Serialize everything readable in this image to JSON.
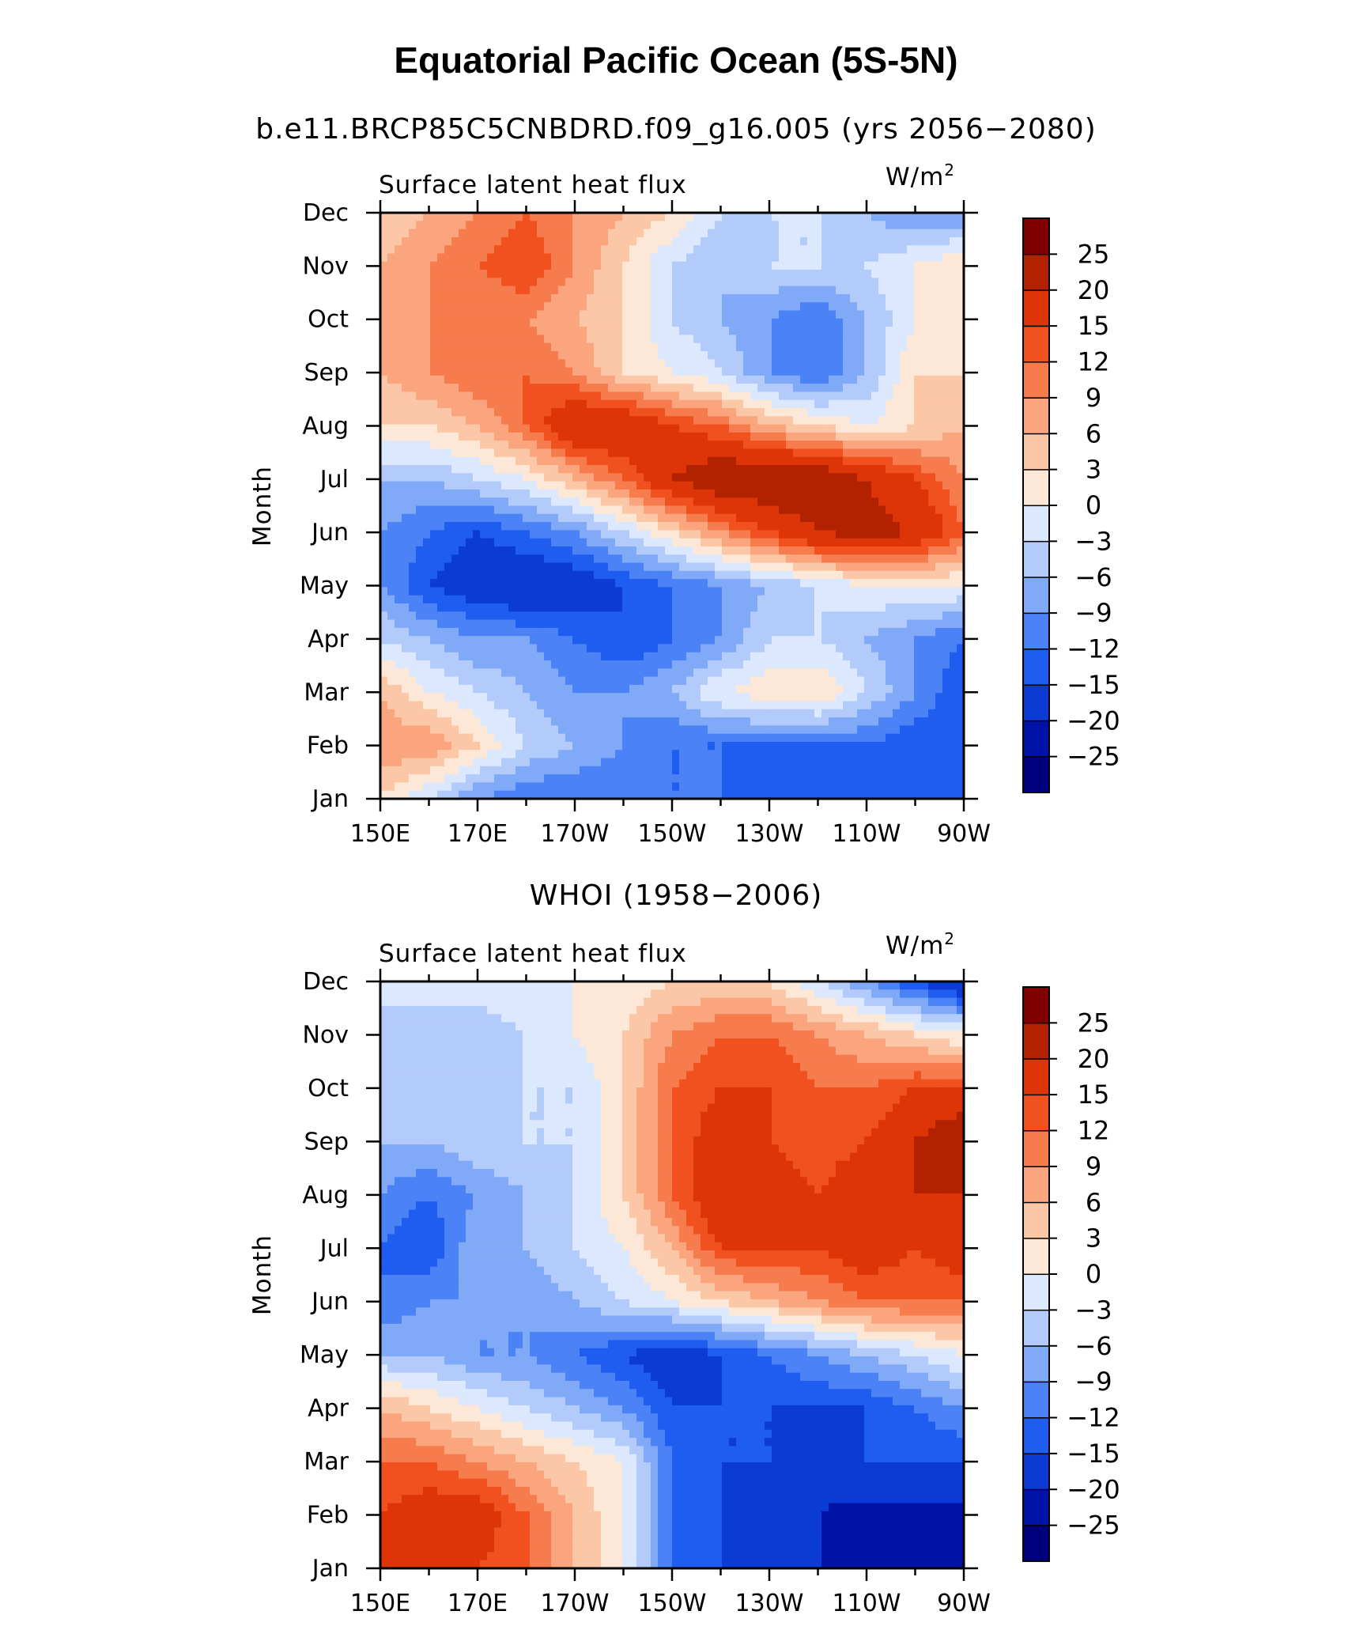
{
  "figure": {
    "title": "Equatorial Pacific Ocean (5S-5N)",
    "colorbar_colors": [
      "#00007f",
      "#0013a6",
      "#0b3ad5",
      "#1f5cf0",
      "#4b82f5",
      "#80a9f7",
      "#b3cbfa",
      "#dbe8fd",
      "#fde8d7",
      "#fcc7a6",
      "#fba57e",
      "#f77c4d",
      "#f1511f",
      "#dd3508",
      "#b22200",
      "#800000"
    ]
  },
  "chart_data": [
    {
      "type": "heatmap",
      "subtitle": "b.e11.BRCP85C5CNBDRD.f09_g16.005 (yrs 2056−2080)",
      "left_label": "Surface latent heat flux",
      "units_label": "W/m",
      "units_sup": "2",
      "ylabel": "Month",
      "x_ticks": [
        "150E",
        "170E",
        "170W",
        "150W",
        "130W",
        "110W",
        "90W"
      ],
      "x_values": [
        150,
        170,
        190,
        210,
        230,
        250,
        270
      ],
      "xlim": [
        150,
        270
      ],
      "y_ticks": [
        "Jan",
        "Feb",
        "Mar",
        "Apr",
        "May",
        "Jun",
        "Jul",
        "Aug",
        "Sep",
        "Oct",
        "Nov",
        "Dec"
      ],
      "y_values": [
        1,
        2,
        3,
        4,
        5,
        6,
        7,
        8,
        9,
        10,
        11,
        12
      ],
      "ylim": [
        1,
        12
      ],
      "colorbar_labels": [
        "25",
        "20",
        "15",
        "12",
        "9",
        "6",
        "3",
        "0",
        "−3",
        "−6",
        "−9",
        "−12",
        "−15",
        "−20",
        "−25"
      ],
      "levels": [
        -25,
        -20,
        -15,
        -12,
        -9,
        -6,
        -3,
        0,
        3,
        6,
        9,
        12,
        15,
        20,
        25
      ],
      "grid_x": [
        150,
        160,
        170,
        180,
        190,
        200,
        210,
        220,
        230,
        240,
        250,
        260,
        270
      ],
      "grid_y": [
        1,
        2,
        3,
        4,
        5,
        6,
        7,
        8,
        9,
        10,
        11,
        12
      ],
      "values": [
        [
          3,
          -3,
          -9,
          -12,
          -12,
          -12,
          -12,
          -12,
          -15,
          -15,
          -15,
          -15,
          -15
        ],
        [
          8,
          9,
          3,
          -3,
          -6,
          -9,
          -12,
          -12,
          -12,
          -12,
          -12,
          -15,
          -12
        ],
        [
          6,
          0,
          -3,
          -6,
          -9,
          -9,
          -6,
          0,
          2,
          3,
          -3,
          -9,
          -15
        ],
        [
          -3,
          -6,
          -9,
          -9,
          -12,
          -15,
          -12,
          -9,
          -3,
          -3,
          -6,
          -9,
          -12
        ],
        [
          -9,
          -15,
          -18,
          -20,
          -18,
          -15,
          -12,
          -9,
          -6,
          -3,
          0,
          0,
          0
        ],
        [
          -9,
          -12,
          -15,
          -12,
          -9,
          -3,
          3,
          9,
          15,
          20,
          22,
          20,
          12
        ],
        [
          -6,
          -6,
          -3,
          0,
          6,
          12,
          20,
          25,
          25,
          25,
          20,
          15,
          9
        ],
        [
          3,
          3,
          6,
          12,
          20,
          20,
          15,
          12,
          6,
          3,
          0,
          3,
          6
        ],
        [
          6,
          9,
          12,
          12,
          9,
          3,
          0,
          -3,
          -9,
          -12,
          -6,
          3,
          3
        ],
        [
          6,
          9,
          9,
          9,
          6,
          3,
          -3,
          -6,
          -9,
          -12,
          -6,
          0,
          3
        ],
        [
          6,
          9,
          12,
          15,
          9,
          3,
          -3,
          -6,
          -3,
          -3,
          -3,
          0,
          3
        ],
        [
          3,
          6,
          9,
          12,
          9,
          6,
          3,
          -3,
          -3,
          -3,
          -6,
          -9,
          -9
        ]
      ]
    },
    {
      "type": "heatmap",
      "subtitle": "WHOI (1958−2006)",
      "left_label": "Surface latent heat flux",
      "units_label": "W/m",
      "units_sup": "2",
      "ylabel": "Month",
      "x_ticks": [
        "150E",
        "170E",
        "170W",
        "150W",
        "130W",
        "110W",
        "90W"
      ],
      "x_values": [
        150,
        170,
        190,
        210,
        230,
        250,
        270
      ],
      "xlim": [
        150,
        270
      ],
      "y_ticks": [
        "Jan",
        "Feb",
        "Mar",
        "Apr",
        "May",
        "Jun",
        "Jul",
        "Aug",
        "Sep",
        "Oct",
        "Nov",
        "Dec"
      ],
      "y_values": [
        1,
        2,
        3,
        4,
        5,
        6,
        7,
        8,
        9,
        10,
        11,
        12
      ],
      "ylim": [
        1,
        12
      ],
      "colorbar_labels": [
        "25",
        "20",
        "15",
        "12",
        "9",
        "6",
        "3",
        "0",
        "−3",
        "−6",
        "−9",
        "−12",
        "−15",
        "−20",
        "−25"
      ],
      "levels": [
        -25,
        -20,
        -15,
        -12,
        -9,
        -6,
        -3,
        0,
        3,
        6,
        9,
        12,
        15,
        20,
        25
      ],
      "grid_x": [
        150,
        160,
        170,
        180,
        190,
        200,
        210,
        220,
        230,
        240,
        250,
        260,
        270
      ],
      "grid_y": [
        1,
        2,
        3,
        4,
        5,
        6,
        7,
        8,
        9,
        10,
        11,
        12
      ],
      "values": [
        [
          15,
          15,
          15,
          12,
          6,
          0,
          -12,
          -15,
          -20,
          -20,
          -20,
          -25,
          -25
        ],
        [
          15,
          18,
          18,
          12,
          6,
          0,
          -12,
          -15,
          -18,
          -20,
          -22,
          -22,
          -22
        ],
        [
          12,
          12,
          9,
          6,
          3,
          0,
          -12,
          -15,
          -15,
          -18,
          -15,
          -15,
          -15
        ],
        [
          6,
          3,
          0,
          -3,
          -6,
          -9,
          -15,
          -15,
          -15,
          -15,
          -15,
          -12,
          -9
        ],
        [
          -6,
          -6,
          -9,
          -9,
          -12,
          -15,
          -18,
          -15,
          -12,
          -9,
          -6,
          -3,
          0
        ],
        [
          -12,
          -9,
          -9,
          -9,
          -6,
          -3,
          0,
          3,
          6,
          9,
          12,
          12,
          12
        ],
        [
          -12,
          -15,
          -6,
          -6,
          -3,
          0,
          6,
          15,
          15,
          15,
          18,
          15,
          18
        ],
        [
          -9,
          -12,
          -9,
          -6,
          -3,
          3,
          12,
          20,
          18,
          15,
          20,
          20,
          20
        ],
        [
          -6,
          -6,
          -3,
          -3,
          -3,
          3,
          12,
          18,
          15,
          12,
          15,
          20,
          25
        ],
        [
          -3,
          -3,
          -6,
          -3,
          -3,
          3,
          12,
          15,
          15,
          12,
          12,
          15,
          15
        ],
        [
          -3,
          -6,
          -6,
          -3,
          0,
          3,
          9,
          12,
          12,
          9,
          6,
          3,
          0
        ],
        [
          -3,
          0,
          0,
          0,
          0,
          0,
          3,
          3,
          3,
          -3,
          -9,
          -15,
          -20
        ]
      ]
    }
  ]
}
